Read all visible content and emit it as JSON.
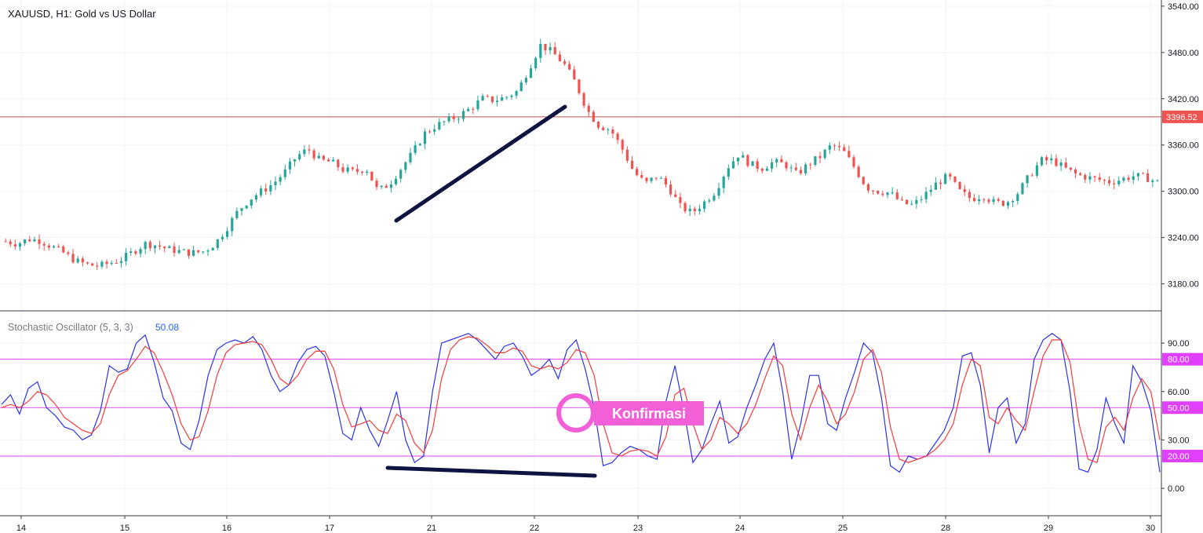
{
  "symbol_title": "XAUUSD, H1: Gold vs US Dollar",
  "oscillator": {
    "title": "Stochastic Oscillator (5, 3, 3)",
    "value": "50.08"
  },
  "annotation": {
    "label": "Konfirmasi"
  },
  "colors": {
    "up": "#26a69a",
    "down": "#ef5350",
    "k_line": "#2b33e6",
    "d_line": "#f23b3b",
    "levels": "#e040fb",
    "price_line": "#c0504d",
    "trendline": "#0d1440",
    "konf_fill": "#f25fd6"
  },
  "chart_data": [
    {
      "type": "candlestick",
      "title": "XAUUSD, H1: Gold vs US Dollar",
      "y_ticks": [
        "3540.00",
        "3480.00",
        "3420.00",
        "3360.00",
        "3300.00",
        "3240.00",
        "3180.00"
      ],
      "y_tick_values": [
        3540,
        3480,
        3420,
        3360,
        3300,
        3240,
        3180
      ],
      "ylim": [
        3145,
        3548
      ],
      "current_price_label": "3396.52",
      "current_price": 3396.52,
      "x_ticks": [
        "14",
        "15",
        "16",
        "17",
        "21",
        "22",
        "23",
        "24",
        "25",
        "28",
        "29",
        "30"
      ],
      "price_path": [
        [
          0,
          3235
        ],
        [
          10,
          3232
        ],
        [
          20,
          3238
        ],
        [
          30,
          3236
        ],
        [
          40,
          3228
        ],
        [
          50,
          3220
        ],
        [
          60,
          3210
        ],
        [
          70,
          3205
        ],
        [
          80,
          3203
        ],
        [
          90,
          3207
        ],
        [
          100,
          3212
        ],
        [
          110,
          3222
        ],
        [
          120,
          3232
        ],
        [
          130,
          3230
        ],
        [
          140,
          3225
        ],
        [
          150,
          3222
        ],
        [
          160,
          3220
        ],
        [
          170,
          3222
        ],
        [
          180,
          3232
        ],
        [
          190,
          3252
        ],
        [
          200,
          3275
        ],
        [
          210,
          3290
        ],
        [
          220,
          3300
        ],
        [
          230,
          3310
        ],
        [
          240,
          3325
        ],
        [
          250,
          3345
        ],
        [
          260,
          3355
        ],
        [
          270,
          3340
        ],
        [
          280,
          3338
        ],
        [
          290,
          3328
        ],
        [
          300,
          3325
        ],
        [
          310,
          3330
        ],
        [
          320,
          3300
        ],
        [
          330,
          3310
        ],
        [
          340,
          3330
        ],
        [
          350,
          3350
        ],
        [
          360,
          3375
        ],
        [
          370,
          3385
        ],
        [
          380,
          3392
        ],
        [
          390,
          3398
        ],
        [
          400,
          3408
        ],
        [
          410,
          3420
        ],
        [
          420,
          3418
        ],
        [
          430,
          3422
        ],
        [
          440,
          3430
        ],
        [
          450,
          3460
        ],
        [
          460,
          3490
        ],
        [
          470,
          3480
        ],
        [
          480,
          3465
        ],
        [
          490,
          3440
        ],
        [
          500,
          3405
        ],
        [
          510,
          3385
        ],
        [
          520,
          3380
        ],
        [
          530,
          3355
        ],
        [
          540,
          3325
        ],
        [
          550,
          3310
        ],
        [
          560,
          3320
        ],
        [
          570,
          3305
        ],
        [
          580,
          3280
        ],
        [
          590,
          3272
        ],
        [
          600,
          3285
        ],
        [
          610,
          3300
        ],
        [
          620,
          3330
        ],
        [
          630,
          3348
        ],
        [
          640,
          3335
        ],
        [
          650,
          3330
        ],
        [
          660,
          3338
        ],
        [
          670,
          3335
        ],
        [
          680,
          3322
        ],
        [
          690,
          3335
        ],
        [
          700,
          3345
        ],
        [
          710,
          3360
        ],
        [
          720,
          3352
        ],
        [
          730,
          3330
        ],
        [
          740,
          3305
        ],
        [
          750,
          3300
        ],
        [
          760,
          3298
        ],
        [
          770,
          3285
        ],
        [
          780,
          3282
        ],
        [
          790,
          3295
        ],
        [
          800,
          3310
        ],
        [
          810,
          3320
        ],
        [
          820,
          3300
        ],
        [
          830,
          3290
        ],
        [
          840,
          3295
        ],
        [
          850,
          3285
        ],
        [
          860,
          3285
        ],
        [
          870,
          3298
        ],
        [
          880,
          3320
        ],
        [
          890,
          3340
        ],
        [
          900,
          3340
        ],
        [
          910,
          3330
        ],
        [
          920,
          3322
        ],
        [
          930,
          3318
        ],
        [
          940,
          3315
        ],
        [
          950,
          3312
        ],
        [
          960,
          3316
        ],
        [
          970,
          3320
        ],
        [
          980,
          3318
        ],
        [
          990,
          3312
        ]
      ]
    },
    {
      "type": "line",
      "title": "Stochastic Oscillator (5, 3, 3)",
      "y_ticks": [
        "90.00",
        "60.00",
        "30.00",
        "0.00"
      ],
      "y_tick_values": [
        90,
        60,
        30,
        0
      ],
      "levels": [
        {
          "label": "80.00",
          "value": 80
        },
        {
          "label": "50.00",
          "value": 50
        },
        {
          "label": "20.00",
          "value": 20
        }
      ],
      "ylim": [
        -17,
        110
      ],
      "series": [
        {
          "values": [
            52,
            58,
            46,
            62,
            66,
            50,
            45,
            38,
            36,
            30,
            33,
            48,
            76,
            72,
            74,
            90,
            95,
            78,
            56,
            48,
            28,
            24,
            42,
            70,
            86,
            90,
            92,
            90,
            94,
            86,
            70,
            60,
            64,
            78,
            86,
            88,
            82,
            60,
            34,
            30,
            50,
            36,
            26,
            42,
            60,
            30,
            16,
            20,
            60,
            90,
            92,
            94,
            96,
            92,
            86,
            80,
            88,
            90,
            82,
            70,
            74,
            80,
            68,
            86,
            92,
            74,
            50,
            14,
            16,
            22,
            26,
            24,
            20,
            18,
            54,
            76,
            48,
            16,
            24,
            40,
            54,
            28,
            32,
            50,
            64,
            80,
            90,
            60,
            18,
            40,
            70,
            70,
            40,
            36,
            56,
            72,
            90,
            84,
            56,
            14,
            10,
            20,
            18,
            20,
            28,
            36,
            50,
            82,
            84,
            64,
            22,
            50,
            56,
            28,
            40,
            80,
            92,
            96,
            92,
            60,
            12,
            10,
            24,
            56,
            40,
            28,
            76,
            66,
            48,
            10
          ]
        },
        {
          "values": [
            50,
            52,
            50,
            54,
            60,
            58,
            52,
            44,
            40,
            36,
            34,
            40,
            58,
            70,
            73,
            80,
            88,
            84,
            72,
            58,
            40,
            30,
            32,
            48,
            70,
            84,
            89,
            90,
            91,
            89,
            80,
            68,
            64,
            70,
            80,
            85,
            85,
            74,
            52,
            38,
            40,
            42,
            36,
            34,
            46,
            42,
            28,
            22,
            36,
            68,
            86,
            92,
            94,
            93,
            89,
            84,
            84,
            87,
            85,
            76,
            74,
            76,
            74,
            78,
            86,
            84,
            70,
            40,
            22,
            20,
            23,
            24,
            23,
            20,
            32,
            58,
            62,
            40,
            24,
            30,
            44,
            40,
            34,
            40,
            52,
            68,
            82,
            76,
            46,
            30,
            50,
            64,
            54,
            40,
            46,
            60,
            80,
            86,
            72,
            38,
            18,
            16,
            18,
            20,
            24,
            30,
            40,
            64,
            80,
            76,
            44,
            40,
            50,
            42,
            36,
            60,
            82,
            92,
            92,
            78,
            40,
            18,
            16,
            38,
            44,
            36,
            56,
            68,
            60,
            30
          ]
        }
      ]
    }
  ]
}
